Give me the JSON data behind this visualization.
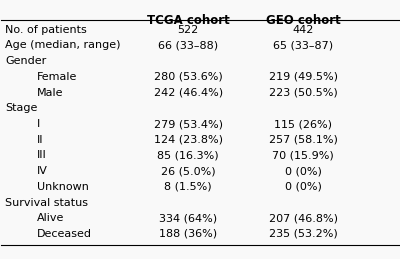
{
  "headers": [
    "",
    "TCGA cohort",
    "GEO cohort"
  ],
  "rows": [
    {
      "label": "No. of patients",
      "indent": 0,
      "tcga": "522",
      "geo": "442"
    },
    {
      "label": "Age (median, range)",
      "indent": 0,
      "tcga": "66 (33–88)",
      "geo": "65 (33–87)"
    },
    {
      "label": "Gender",
      "indent": 0,
      "tcga": "",
      "geo": ""
    },
    {
      "label": "Female",
      "indent": 1,
      "tcga": "280 (53.6%)",
      "geo": "219 (49.5%)"
    },
    {
      "label": "Male",
      "indent": 1,
      "tcga": "242 (46.4%)",
      "geo": "223 (50.5%)"
    },
    {
      "label": "Stage",
      "indent": 0,
      "tcga": "",
      "geo": ""
    },
    {
      "label": "I",
      "indent": 1,
      "tcga": "279 (53.4%)",
      "geo": "115 (26%)"
    },
    {
      "label": "II",
      "indent": 1,
      "tcga": "124 (23.8%)",
      "geo": "257 (58.1%)"
    },
    {
      "label": "III",
      "indent": 1,
      "tcga": "85 (16.3%)",
      "geo": "70 (15.9%)"
    },
    {
      "label": "IV",
      "indent": 1,
      "tcga": "26 (5.0%)",
      "geo": "0 (0%)"
    },
    {
      "label": "Unknown",
      "indent": 1,
      "tcga": "8 (1.5%)",
      "geo": "0 (0%)"
    },
    {
      "label": "Survival status",
      "indent": 0,
      "tcga": "",
      "geo": ""
    },
    {
      "label": "Alive",
      "indent": 1,
      "tcga": "334 (64%)",
      "geo": "207 (46.8%)"
    },
    {
      "label": "Deceased",
      "indent": 1,
      "tcga": "188 (36%)",
      "geo": "235 (53.2%)"
    }
  ],
  "background_color": "#f9f9f9",
  "header_line_color": "#000000",
  "text_color": "#000000",
  "header_fontsize": 8.5,
  "body_fontsize": 8.0,
  "indent_size": 0.08
}
